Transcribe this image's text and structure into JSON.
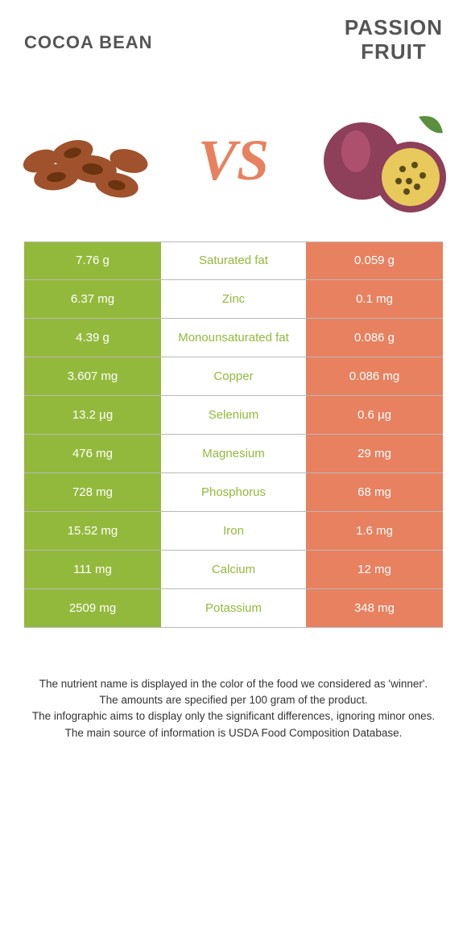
{
  "header": {
    "left_title": "COCOA BEAN",
    "right_title": "PASSION\nFRUIT",
    "vs_label": "VS"
  },
  "colors": {
    "left_bg": "#93b93c",
    "right_bg": "#e8815f",
    "mid_text_winner_left": "#93b93c",
    "mid_text_winner_right": "#e8815f",
    "row_border": "#b8b8b8",
    "vs_color": "#e8815f",
    "footer_text": "#333333",
    "header_text": "#555555"
  },
  "rows": [
    {
      "nutrient": "Saturated fat",
      "left": "7.76 g",
      "right": "0.059 g",
      "winner": "left"
    },
    {
      "nutrient": "Zinc",
      "left": "6.37 mg",
      "right": "0.1 mg",
      "winner": "left"
    },
    {
      "nutrient": "Monounsaturated fat",
      "left": "4.39 g",
      "right": "0.086 g",
      "winner": "left"
    },
    {
      "nutrient": "Copper",
      "left": "3.607 mg",
      "right": "0.086 mg",
      "winner": "left"
    },
    {
      "nutrient": "Selenium",
      "left": "13.2 µg",
      "right": "0.6 µg",
      "winner": "left"
    },
    {
      "nutrient": "Magnesium",
      "left": "476 mg",
      "right": "29 mg",
      "winner": "left"
    },
    {
      "nutrient": "Phosphorus",
      "left": "728 mg",
      "right": "68 mg",
      "winner": "left"
    },
    {
      "nutrient": "Iron",
      "left": "15.52 mg",
      "right": "1.6 mg",
      "winner": "left"
    },
    {
      "nutrient": "Calcium",
      "left": "111 mg",
      "right": "12 mg",
      "winner": "left"
    },
    {
      "nutrient": "Potassium",
      "left": "2509 mg",
      "right": "348 mg",
      "winner": "left"
    }
  ],
  "footer": {
    "line1": "The nutrient name is displayed in the color of the food we considered as 'winner'.",
    "line2": "The amounts are specified per 100 gram of the product.",
    "line3": "The infographic aims to display only the significant differences, ignoring minor ones.",
    "line4": "The main source of information is USDA Food Composition Database."
  },
  "fonts": {
    "header_left_size": 22,
    "header_right_size": 26,
    "vs_size": 72,
    "cell_size": 15,
    "footer_size": 13.5
  }
}
